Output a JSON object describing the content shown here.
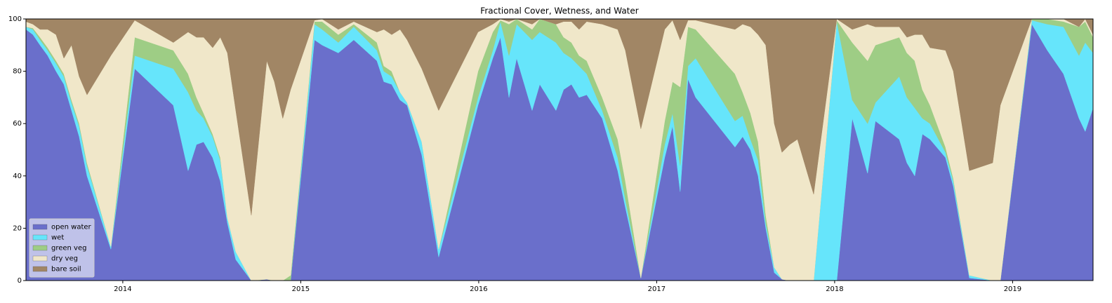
{
  "chart_data": {
    "type": "stacked_area",
    "title": "Fractional Cover, Wetness, and Water",
    "x": [
      2013.456,
      2013.495,
      2013.535,
      2013.578,
      2013.625,
      2013.669,
      2013.712,
      2013.755,
      2013.799,
      2013.933,
      2014.067,
      2014.284,
      2014.367,
      2014.414,
      2014.454,
      2014.505,
      2014.548,
      2014.588,
      2014.635,
      2014.722,
      2014.809,
      2014.852,
      2014.899,
      2014.943,
      2015.077,
      2015.12,
      2015.211,
      2015.298,
      2015.428,
      2015.467,
      2015.511,
      2015.558,
      2015.598,
      2015.68,
      2015.775,
      2015.996,
      2016.079,
      2016.122,
      2016.17,
      2016.213,
      2016.3,
      2016.343,
      2016.434,
      2016.477,
      2016.521,
      2016.564,
      2016.607,
      2016.694,
      2016.781,
      2016.824,
      2016.911,
      2017.045,
      2017.089,
      2017.132,
      2017.176,
      2017.219,
      2017.44,
      2017.483,
      2017.527,
      2017.57,
      2017.613,
      2017.661,
      2017.704,
      2017.748,
      2017.791,
      2017.882,
      2018.012,
      2018.099,
      2018.185,
      2018.229,
      2018.363,
      2018.406,
      2018.45,
      2018.493,
      2018.536,
      2018.623,
      2018.667,
      2018.757,
      2018.888,
      2018.931,
      2019.108,
      2019.195,
      2019.286,
      2019.373,
      2019.408,
      2019.452
    ],
    "series": [
      {
        "name": "open water",
        "color": "#6a6fcb",
        "values": [
          96,
          94,
          90,
          86,
          80,
          75,
          65,
          55,
          40,
          12,
          81,
          67,
          42,
          52,
          53,
          47,
          38,
          22,
          8,
          0,
          0.5,
          0,
          0,
          0,
          92,
          90,
          87,
          92,
          84,
          76,
          75,
          69,
          67,
          48,
          9,
          67,
          85,
          93,
          70,
          85,
          65,
          75,
          65,
          73,
          75,
          70,
          71,
          62,
          42,
          28,
          1,
          47,
          59,
          34,
          77,
          70,
          51,
          55,
          50,
          40,
          20,
          3,
          0.5,
          0,
          0,
          0,
          0,
          62,
          41,
          61,
          54,
          45,
          40,
          56,
          54,
          47,
          36,
          1,
          0,
          0,
          98,
          88,
          79,
          62,
          57,
          66
        ]
      },
      {
        "name": "wet",
        "color": "#66e5fb",
        "values": [
          1,
          2,
          2,
          2,
          3,
          3,
          3,
          4,
          4,
          1,
          5,
          14,
          30,
          13,
          9,
          8,
          8,
          2,
          3,
          0,
          0,
          0,
          0,
          0,
          6,
          6,
          4,
          5,
          4,
          4,
          3,
          3,
          1,
          5,
          3,
          3,
          3,
          6,
          16,
          13,
          27,
          20,
          26,
          14,
          10,
          12,
          8,
          3,
          5,
          3,
          0,
          5,
          5,
          10,
          5,
          15,
          10,
          8,
          4,
          6,
          2,
          2,
          0,
          0,
          0,
          0,
          99,
          7,
          19,
          7,
          24,
          25,
          26,
          6,
          6,
          2,
          2,
          1,
          0,
          0,
          1.5,
          10,
          18,
          24,
          34,
          21
        ]
      },
      {
        "name": "green veg",
        "color": "#9ecd85",
        "values": [
          0,
          0.5,
          1,
          1,
          1,
          1,
          1,
          1,
          1,
          0,
          7,
          7,
          7,
          5,
          2,
          1,
          1,
          0,
          0,
          0,
          0,
          0,
          0,
          2,
          1,
          3,
          3,
          1,
          3,
          2,
          2,
          0,
          0,
          0,
          0,
          10,
          7,
          0.5,
          12,
          2,
          4,
          5,
          7,
          6,
          6,
          4,
          5,
          5,
          7,
          7,
          0,
          9,
          12,
          30,
          15,
          11,
          18,
          9,
          10,
          7,
          3,
          0,
          0,
          0,
          0,
          0,
          0.5,
          22,
          24,
          22,
          15,
          17,
          18,
          11,
          7,
          2,
          1,
          0,
          0,
          0,
          0.5,
          2,
          2,
          11,
          8,
          6
        ]
      },
      {
        "name": "dry veg",
        "color": "#f0e7c9",
        "values": [
          2,
          1.5,
          3,
          7,
          10,
          6,
          21,
          18,
          26,
          73,
          6.5,
          3,
          16,
          23,
          29,
          33,
          46,
          63,
          54,
          25,
          83.5,
          76,
          62,
          71,
          0.5,
          1,
          2,
          1,
          4,
          14,
          14,
          24,
          24,
          28,
          53,
          15,
          3,
          0.5,
          1,
          0,
          2,
          0,
          0,
          6,
          8,
          10,
          15,
          28,
          42,
          50,
          57,
          35,
          23.5,
          18,
          2.5,
          3.5,
          17,
          26,
          33,
          41,
          65,
          55,
          48.5,
          52,
          54,
          33,
          0.5,
          5,
          14,
          7,
          4,
          6,
          10,
          21,
          22,
          37,
          41,
          40,
          45,
          67,
          0,
          0,
          1,
          0,
          1,
          1
        ]
      },
      {
        "name": "bare soil",
        "color": "#a18665",
        "values": [
          1,
          2,
          4,
          4,
          6,
          15,
          10,
          22,
          29,
          14,
          0.5,
          9,
          5,
          7,
          7,
          11,
          7,
          13,
          35,
          75,
          16,
          24,
          38,
          27,
          0.5,
          0,
          4,
          1,
          5,
          4,
          6,
          4,
          8,
          19,
          35,
          5,
          2,
          0,
          1,
          0,
          2,
          0,
          2,
          1,
          1,
          4,
          1,
          2,
          4,
          12,
          42,
          4,
          0.5,
          8,
          0.5,
          0.5,
          4,
          2,
          3,
          6,
          10,
          40,
          51,
          48,
          46,
          67,
          0,
          4,
          2,
          3,
          3,
          7,
          6,
          6,
          11,
          12,
          20,
          58,
          55,
          33,
          0,
          0,
          0,
          3,
          0,
          6
        ]
      }
    ],
    "xlim": [
      2013.456,
      2019.452
    ],
    "xticks": [
      2014,
      2015,
      2016,
      2017,
      2018,
      2019
    ],
    "ylim": [
      0,
      100
    ],
    "yticks": [
      0,
      20,
      40,
      60,
      80,
      100
    ],
    "legend": "lower left"
  }
}
